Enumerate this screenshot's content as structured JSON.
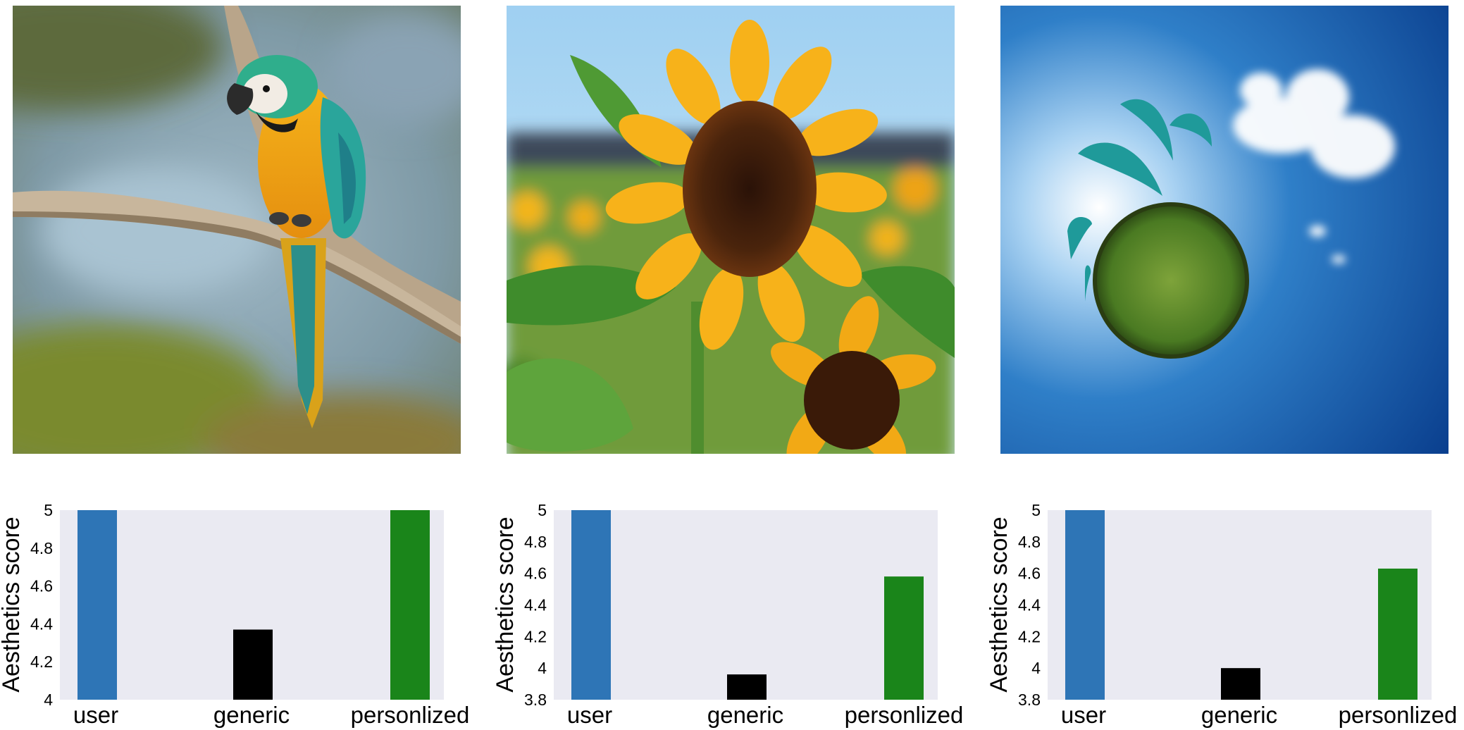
{
  "images": [
    {
      "subject": "blue-and-yellow macaw perched on a branch"
    },
    {
      "subject": "sunflower in a sunflower field"
    },
    {
      "subject": "little planet panorama of grass under a blue sky with clouds"
    }
  ],
  "chart_data": [
    {
      "type": "bar",
      "categories": [
        "user",
        "generic",
        "personlized"
      ],
      "values": [
        5.0,
        4.37,
        5.0
      ],
      "colors": [
        "#2e75b6",
        "#000000",
        "#1a851a"
      ],
      "ylabel": "Aesthetics score",
      "ylim": [
        4.0,
        5.0
      ],
      "yticks": [
        "4",
        "4.2",
        "4.4",
        "4.6",
        "4.8",
        "5"
      ],
      "plot_background": "#eaeaf2",
      "grid": false
    },
    {
      "type": "bar",
      "categories": [
        "user",
        "generic",
        "personlized"
      ],
      "values": [
        5.0,
        3.96,
        4.58
      ],
      "colors": [
        "#2e75b6",
        "#000000",
        "#1a851a"
      ],
      "ylabel": "Aesthetics score",
      "ylim": [
        3.8,
        5.0
      ],
      "yticks": [
        "3.8",
        "4",
        "4.2",
        "4.4",
        "4.6",
        "4.8",
        "5"
      ],
      "plot_background": "#eaeaf2",
      "grid": false
    },
    {
      "type": "bar",
      "categories": [
        "user",
        "generic",
        "personlized"
      ],
      "values": [
        5.0,
        4.0,
        4.63
      ],
      "colors": [
        "#2e75b6",
        "#000000",
        "#1a851a"
      ],
      "ylabel": "Aesthetics score",
      "ylim": [
        3.8,
        5.0
      ],
      "yticks": [
        "3.8",
        "4",
        "4.2",
        "4.4",
        "4.6",
        "4.8",
        "5"
      ],
      "plot_background": "#eaeaf2",
      "grid": false
    }
  ]
}
